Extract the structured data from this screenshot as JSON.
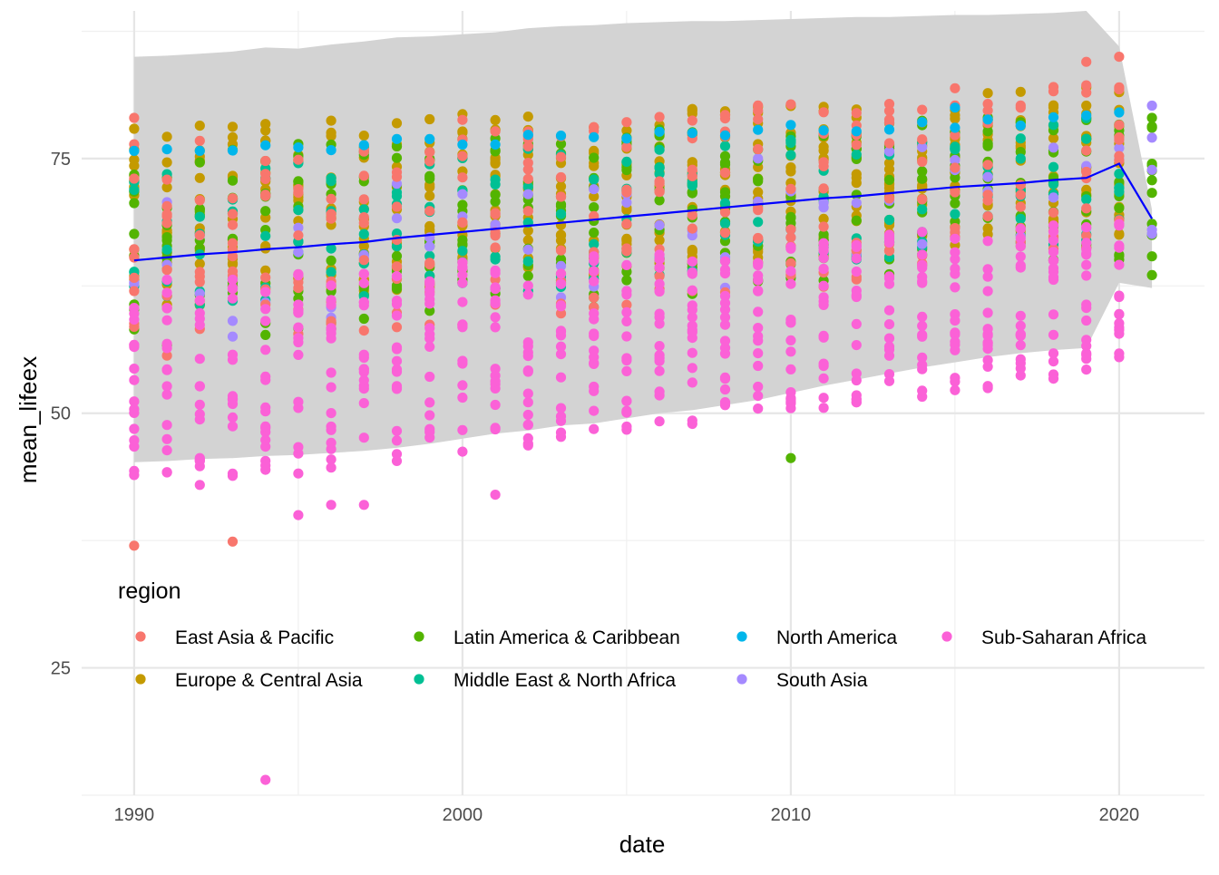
{
  "chart_data": {
    "type": "scatter",
    "xlabel": "date",
    "ylabel": "mean_lifeex",
    "xlim": [
      1988.4,
      2022.6
    ],
    "ylim": [
      12.5,
      89.5
    ],
    "x_ticks": [
      1990,
      2000,
      2010,
      2020
    ],
    "y_ticks": [
      25,
      50,
      75
    ],
    "grid": true,
    "legend": {
      "title": "region",
      "placement": "bottom-left, inside plot",
      "entries": [
        {
          "name": "East Asia & Pacific",
          "color": "#F8766D"
        },
        {
          "name": "Europe & Central Asia",
          "color": "#C49A00"
        },
        {
          "name": "Latin America & Caribbean",
          "color": "#53B400"
        },
        {
          "name": "Middle East & North Africa",
          "color": "#00C094"
        },
        {
          "name": "North America",
          "color": "#00B6EB"
        },
        {
          "name": "South Asia",
          "color": "#A58AFF"
        },
        {
          "name": "Sub-Saharan Africa",
          "color": "#FB61D7"
        }
      ]
    },
    "trend_line": {
      "color": "#0000ff",
      "x": [
        1990,
        1991,
        1992,
        1993,
        1994,
        1995,
        1996,
        1997,
        1998,
        1999,
        2000,
        2001,
        2002,
        2003,
        2004,
        2005,
        2006,
        2007,
        2008,
        2009,
        2010,
        2011,
        2012,
        2013,
        2014,
        2015,
        2016,
        2017,
        2018,
        2019,
        2020,
        2021
      ],
      "y": [
        65.0,
        65.3,
        65.6,
        65.8,
        66.1,
        66.3,
        66.6,
        66.8,
        67.2,
        67.5,
        67.8,
        68.1,
        68.4,
        68.7,
        69.0,
        69.3,
        69.6,
        69.9,
        70.2,
        70.5,
        70.8,
        71.1,
        71.3,
        71.6,
        71.9,
        72.2,
        72.4,
        72.6,
        72.9,
        73.1,
        74.5,
        69.1
      ]
    },
    "ribbon": {
      "color": "#d3d3d3",
      "x": [
        1990,
        1991,
        1992,
        1993,
        1994,
        1995,
        1996,
        1997,
        1998,
        1999,
        2000,
        2001,
        2002,
        2003,
        2004,
        2005,
        2006,
        2007,
        2008,
        2009,
        2010,
        2011,
        2012,
        2013,
        2014,
        2015,
        2016,
        2017,
        2018,
        2019,
        2020,
        2021
      ],
      "upper": [
        85.0,
        85.1,
        85.3,
        85.5,
        85.9,
        85.8,
        86.2,
        86.5,
        86.9,
        87.0,
        87.2,
        87.4,
        87.8,
        88.0,
        88.1,
        88.3,
        88.4,
        88.5,
        88.5,
        88.6,
        88.7,
        88.8,
        88.9,
        88.9,
        89.0,
        89.1,
        89.1,
        89.2,
        89.3,
        89.5,
        86.0,
        70.0
      ],
      "lower": [
        45.2,
        45.3,
        45.5,
        45.6,
        45.8,
        45.9,
        46.1,
        46.3,
        46.6,
        47.0,
        47.5,
        48.0,
        48.3,
        48.8,
        49.0,
        49.5,
        50.0,
        50.3,
        50.8,
        51.3,
        52.0,
        52.7,
        53.3,
        53.9,
        54.5,
        55.0,
        55.5,
        55.9,
        56.2,
        56.4,
        62.8,
        62.3
      ]
    },
    "series": [
      {
        "name": "East Asia & Pacific",
        "color": "#F8766D",
        "range_y": [
          37,
          85
        ]
      },
      {
        "name": "Europe & Central Asia",
        "color": "#C49A00",
        "range_y": [
          53,
          83
        ]
      },
      {
        "name": "Latin America & Caribbean",
        "color": "#53B400",
        "range_y": [
          45,
          80
        ]
      },
      {
        "name": "Middle East & North Africa",
        "color": "#00C094",
        "range_y": [
          56,
          81
        ]
      },
      {
        "name": "North America",
        "color": "#00B6EB",
        "range_y": [
          75,
          80
        ]
      },
      {
        "name": "South Asia",
        "color": "#A58AFF",
        "range_y": [
          55,
          80
        ]
      },
      {
        "name": "Sub-Saharan Africa",
        "color": "#FB61D7",
        "range_y": [
          14,
          75
        ]
      }
    ]
  }
}
